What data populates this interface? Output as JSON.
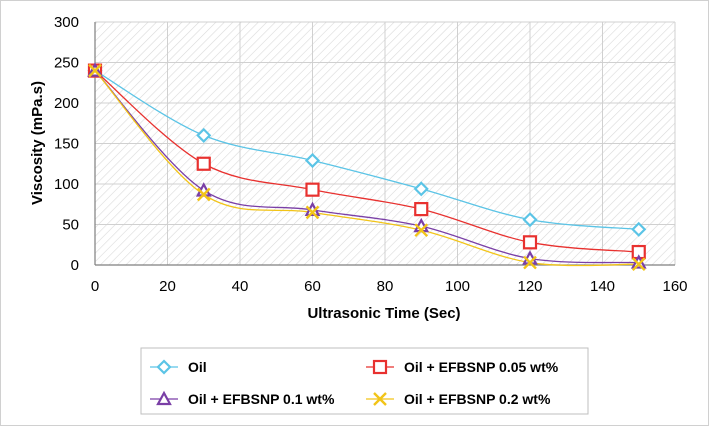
{
  "chart_data": {
    "type": "line",
    "title": "",
    "xlabel": "Ultrasonic Time (Sec)",
    "ylabel": "Viscosity (mPa.s)",
    "xlim": [
      0,
      160
    ],
    "ylim": [
      0,
      300
    ],
    "x_ticks": [
      0,
      20,
      40,
      60,
      80,
      100,
      120,
      140,
      160
    ],
    "y_ticks": [
      0,
      50,
      100,
      150,
      200,
      250,
      300
    ],
    "grid": true,
    "background_pattern": "diagonal hatch",
    "legend_position": "bottom",
    "x": [
      0,
      30,
      60,
      90,
      120,
      150
    ],
    "series": [
      {
        "name": "Oil",
        "values": [
          240,
          160,
          129,
          94,
          56,
          44
        ],
        "color": "#5bc4e6",
        "marker": "diamond"
      },
      {
        "name": "Oil + EFBSNP 0.05 wt%",
        "values": [
          240,
          125,
          93,
          69,
          28,
          16
        ],
        "color": "#e8312f",
        "marker": "square"
      },
      {
        "name": "Oil + EFBSNP 0.1 wt%",
        "values": [
          240,
          92,
          68,
          48,
          8,
          3
        ],
        "color": "#7a3fa6",
        "marker": "triangle"
      },
      {
        "name": "Oil + EFBSNP 0.2 wt%",
        "values": [
          240,
          87,
          65,
          43,
          3,
          1
        ],
        "color": "#f2c418",
        "marker": "x"
      }
    ]
  }
}
